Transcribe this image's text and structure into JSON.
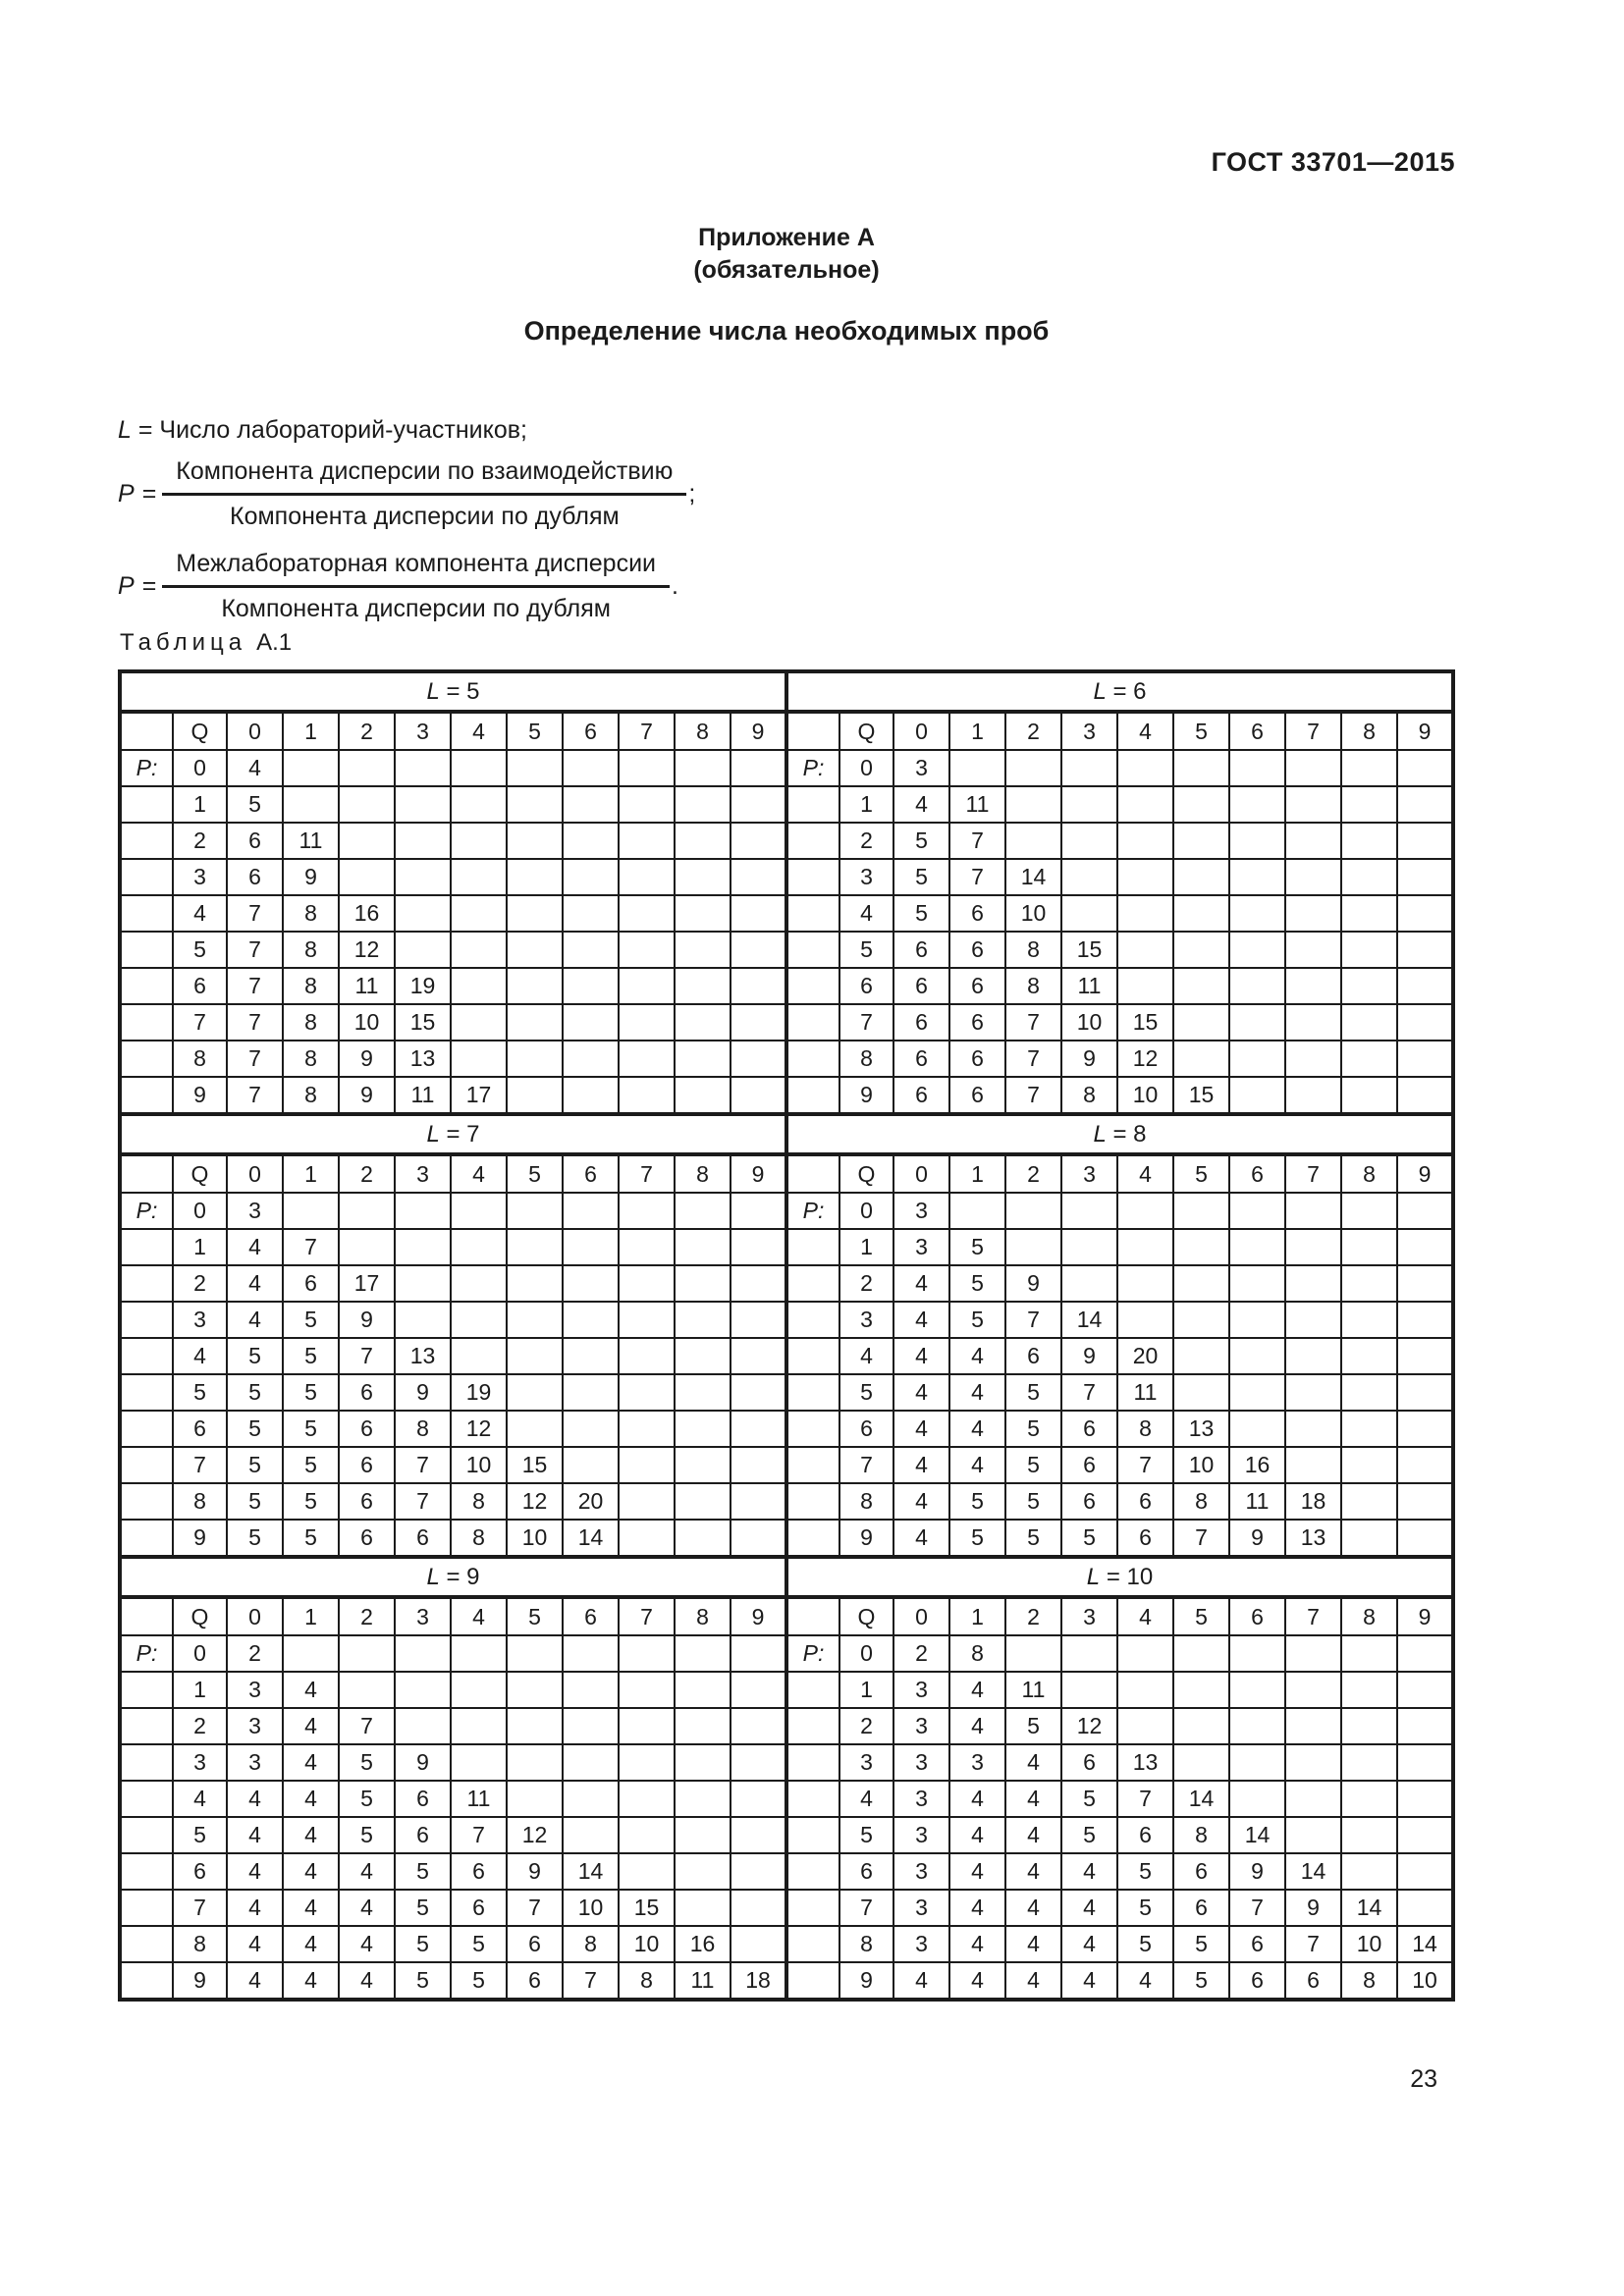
{
  "page": {
    "standard": "ГОСТ 33701—2015",
    "number": "23"
  },
  "appendix": {
    "title": "Приложение А",
    "subtitle": "(обязательное)",
    "heading": "Определение числа необходимых проб"
  },
  "definitions": {
    "l_var": "L",
    "l_text": "= Число лабораторий-участников;",
    "formulas": [
      {
        "var": "P",
        "eq": "=",
        "numerator": "Компонента дисперсии по взаимодействию",
        "denominator": "Компонента дисперсии по дублям",
        "punct": ";"
      },
      {
        "var": "P",
        "eq": "=",
        "numerator": "Межлабораторная компонента дисперсии",
        "denominator": "Компонента дисперсии по дублям",
        "punct": "."
      }
    ]
  },
  "table": {
    "label_word": "Таблица",
    "label_number": "А.1",
    "q_header": "Q",
    "p_label": "P:",
    "col_headers": [
      "0",
      "1",
      "2",
      "3",
      "4",
      "5",
      "6",
      "7",
      "8",
      "9"
    ],
    "row_headers": [
      "0",
      "1",
      "2",
      "3",
      "4",
      "5",
      "6",
      "7",
      "8",
      "9"
    ],
    "sections": [
      {
        "l_var": "L",
        "l_value": "= 5",
        "rows": [
          [
            4
          ],
          [
            5
          ],
          [
            6,
            11
          ],
          [
            6,
            9
          ],
          [
            7,
            8,
            16
          ],
          [
            7,
            8,
            12
          ],
          [
            7,
            8,
            11,
            19
          ],
          [
            7,
            8,
            10,
            15
          ],
          [
            7,
            8,
            9,
            13
          ],
          [
            7,
            8,
            9,
            11,
            17
          ]
        ]
      },
      {
        "l_var": "L",
        "l_value": "= 6",
        "rows": [
          [
            3
          ],
          [
            4,
            11
          ],
          [
            5,
            7
          ],
          [
            5,
            7,
            14
          ],
          [
            5,
            6,
            10
          ],
          [
            6,
            6,
            8,
            15
          ],
          [
            6,
            6,
            8,
            11
          ],
          [
            6,
            6,
            7,
            10,
            15
          ],
          [
            6,
            6,
            7,
            9,
            12
          ],
          [
            6,
            6,
            7,
            8,
            10,
            15
          ]
        ]
      },
      {
        "l_var": "L",
        "l_value": "= 7",
        "rows": [
          [
            3
          ],
          [
            4,
            7
          ],
          [
            4,
            6,
            17
          ],
          [
            4,
            5,
            9
          ],
          [
            5,
            5,
            7,
            13
          ],
          [
            5,
            5,
            6,
            9,
            19
          ],
          [
            5,
            5,
            6,
            8,
            12
          ],
          [
            5,
            5,
            6,
            7,
            10,
            15
          ],
          [
            5,
            5,
            6,
            7,
            8,
            12,
            20
          ],
          [
            5,
            5,
            6,
            6,
            8,
            10,
            14
          ]
        ]
      },
      {
        "l_var": "L",
        "l_value": "= 8",
        "rows": [
          [
            3
          ],
          [
            3,
            5
          ],
          [
            4,
            5,
            9
          ],
          [
            4,
            5,
            7,
            14
          ],
          [
            4,
            4,
            6,
            9,
            20
          ],
          [
            4,
            4,
            5,
            7,
            11
          ],
          [
            4,
            4,
            5,
            6,
            8,
            13
          ],
          [
            4,
            4,
            5,
            6,
            7,
            10,
            16
          ],
          [
            4,
            5,
            5,
            6,
            6,
            8,
            11,
            18
          ],
          [
            4,
            5,
            5,
            5,
            6,
            7,
            9,
            13
          ]
        ]
      },
      {
        "l_var": "L",
        "l_value": "= 9",
        "rows": [
          [
            2
          ],
          [
            3,
            4
          ],
          [
            3,
            4,
            7
          ],
          [
            3,
            4,
            5,
            9
          ],
          [
            4,
            4,
            5,
            6,
            11
          ],
          [
            4,
            4,
            5,
            6,
            7,
            12
          ],
          [
            4,
            4,
            4,
            5,
            6,
            9,
            14
          ],
          [
            4,
            4,
            4,
            5,
            6,
            7,
            10,
            15
          ],
          [
            4,
            4,
            4,
            5,
            5,
            6,
            8,
            10,
            16
          ],
          [
            4,
            4,
            4,
            5,
            5,
            6,
            7,
            8,
            11,
            18
          ]
        ]
      },
      {
        "l_var": "L",
        "l_value": "= 10",
        "rows": [
          [
            2,
            8
          ],
          [
            3,
            4,
            11
          ],
          [
            3,
            4,
            5,
            12
          ],
          [
            3,
            3,
            4,
            6,
            13
          ],
          [
            3,
            4,
            4,
            5,
            7,
            14
          ],
          [
            3,
            4,
            4,
            5,
            6,
            8,
            14
          ],
          [
            3,
            4,
            4,
            4,
            5,
            6,
            9,
            14
          ],
          [
            3,
            4,
            4,
            4,
            5,
            6,
            7,
            9,
            14
          ],
          [
            3,
            4,
            4,
            4,
            5,
            5,
            6,
            7,
            10,
            14
          ],
          [
            4,
            4,
            4,
            4,
            4,
            5,
            6,
            6,
            8,
            10
          ]
        ]
      }
    ]
  }
}
